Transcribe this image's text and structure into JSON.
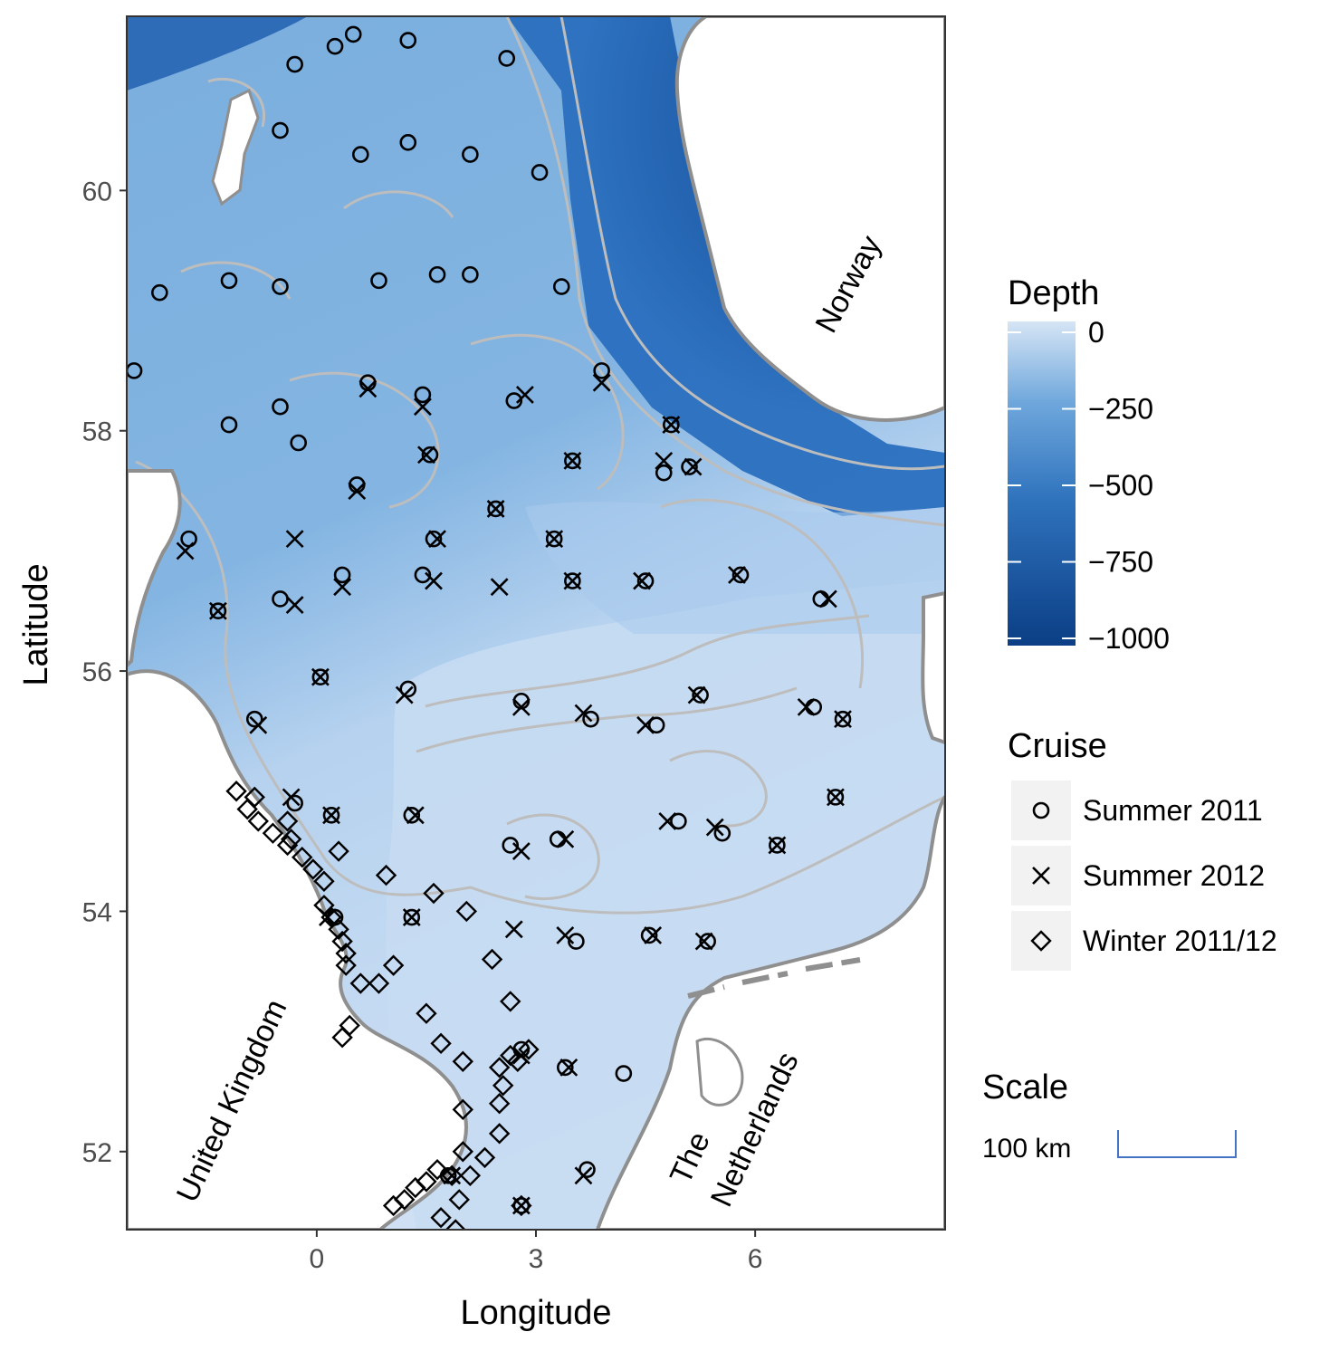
{
  "axes": {
    "x_title": "Longitude",
    "y_title": "Latitude",
    "x_ticks": [
      0,
      3,
      6
    ],
    "y_ticks": [
      52,
      54,
      56,
      58,
      60
    ],
    "x_range": [
      -2.6,
      8.6
    ],
    "y_range": [
      51.35,
      61.45
    ]
  },
  "countries": {
    "norway": "Norway",
    "uk": "United Kingdom",
    "nl_line1": "The",
    "nl_line2": "Netherlands"
  },
  "legend": {
    "depth_title": "Depth",
    "depth_ticks": [
      "0",
      "−250",
      "−500",
      "−750",
      "−1000"
    ],
    "depth_colors": {
      "shallow": "#d6e5f5",
      "deep": "#0b3e85"
    },
    "cruise_title": "Cruise",
    "cruise_items": [
      {
        "label": "Summer 2011",
        "symbol": "circle"
      },
      {
        "label": "Summer 2012",
        "symbol": "cross"
      },
      {
        "label": "Winter 2011/12",
        "symbol": "diamond"
      }
    ]
  },
  "scale": {
    "title": "Scale",
    "label": "100 km"
  },
  "colors": {
    "land": "#ffffff",
    "coast": "#888888",
    "contour": "#bdbdbd",
    "scale_bar": "#4472c4"
  },
  "stations": {
    "summer_2011": [
      [
        -0.3,
        61.05
      ],
      [
        0.25,
        61.2
      ],
      [
        0.5,
        61.3
      ],
      [
        1.25,
        61.25
      ],
      [
        2.6,
        61.1
      ],
      [
        -0.5,
        60.5
      ],
      [
        0.6,
        60.3
      ],
      [
        1.25,
        60.4
      ],
      [
        2.1,
        60.3
      ],
      [
        3.05,
        60.15
      ],
      [
        -2.15,
        59.15
      ],
      [
        -1.2,
        59.25
      ],
      [
        -0.5,
        59.2
      ],
      [
        0.85,
        59.25
      ],
      [
        1.65,
        59.3
      ],
      [
        2.1,
        59.3
      ],
      [
        3.35,
        59.2
      ],
      [
        -2.5,
        58.5
      ],
      [
        -0.5,
        58.2
      ],
      [
        -1.2,
        58.05
      ],
      [
        -0.25,
        57.9
      ],
      [
        1.45,
        58.3
      ],
      [
        2.7,
        58.25
      ],
      [
        3.9,
        58.5
      ],
      [
        0.7,
        58.4
      ],
      [
        4.85,
        58.05
      ],
      [
        1.55,
        57.8
      ],
      [
        3.5,
        57.75
      ],
      [
        4.75,
        57.65
      ],
      [
        5.1,
        57.7
      ],
      [
        0.55,
        57.55
      ],
      [
        2.45,
        57.35
      ],
      [
        -1.75,
        57.1
      ],
      [
        3.25,
        57.1
      ],
      [
        1.6,
        57.1
      ],
      [
        0.35,
        56.8
      ],
      [
        1.45,
        56.8
      ],
      [
        3.5,
        56.75
      ],
      [
        4.5,
        56.75
      ],
      [
        5.8,
        56.8
      ],
      [
        -1.35,
        56.5
      ],
      [
        -0.5,
        56.6
      ],
      [
        6.9,
        56.6
      ],
      [
        0.05,
        55.95
      ],
      [
        1.25,
        55.85
      ],
      [
        -0.85,
        55.6
      ],
      [
        2.8,
        55.75
      ],
      [
        3.75,
        55.6
      ],
      [
        4.65,
        55.55
      ],
      [
        5.25,
        55.8
      ],
      [
        6.8,
        55.7
      ],
      [
        7.2,
        55.6
      ],
      [
        -0.3,
        54.9
      ],
      [
        0.2,
        54.8
      ],
      [
        1.3,
        54.8
      ],
      [
        2.65,
        54.55
      ],
      [
        3.3,
        54.6
      ],
      [
        4.95,
        54.75
      ],
      [
        5.55,
        54.65
      ],
      [
        6.3,
        54.55
      ],
      [
        7.1,
        54.95
      ],
      [
        1.3,
        53.95
      ],
      [
        0.25,
        53.95
      ],
      [
        3.55,
        53.75
      ],
      [
        4.55,
        53.8
      ],
      [
        5.35,
        53.75
      ],
      [
        3.4,
        52.7
      ],
      [
        4.2,
        52.65
      ],
      [
        2.8,
        52.85
      ],
      [
        1.8,
        51.8
      ],
      [
        3.7,
        51.85
      ],
      [
        2.8,
        51.55
      ]
    ],
    "summer_2012": [
      [
        -1.8,
        57.0
      ],
      [
        -0.3,
        57.1
      ],
      [
        0.35,
        56.7
      ],
      [
        1.6,
        56.75
      ],
      [
        2.5,
        56.7
      ],
      [
        3.5,
        56.75
      ],
      [
        4.45,
        56.75
      ],
      [
        5.75,
        56.8
      ],
      [
        -1.35,
        56.5
      ],
      [
        -0.3,
        56.55
      ],
      [
        7.0,
        56.6
      ],
      [
        0.05,
        55.95
      ],
      [
        1.2,
        55.8
      ],
      [
        -0.8,
        55.55
      ],
      [
        2.8,
        55.7
      ],
      [
        3.65,
        55.65
      ],
      [
        4.5,
        55.55
      ],
      [
        5.2,
        55.8
      ],
      [
        6.7,
        55.7
      ],
      [
        7.2,
        55.6
      ],
      [
        0.7,
        58.35
      ],
      [
        1.45,
        58.2
      ],
      [
        2.85,
        58.3
      ],
      [
        3.9,
        58.4
      ],
      [
        4.85,
        58.05
      ],
      [
        1.5,
        57.8
      ],
      [
        3.5,
        57.75
      ],
      [
        4.75,
        57.75
      ],
      [
        5.15,
        57.7
      ],
      [
        0.55,
        57.5
      ],
      [
        2.45,
        57.35
      ],
      [
        3.25,
        57.1
      ],
      [
        1.65,
        57.1
      ],
      [
        -0.35,
        54.95
      ],
      [
        0.2,
        54.8
      ],
      [
        1.35,
        54.8
      ],
      [
        2.8,
        54.5
      ],
      [
        3.4,
        54.6
      ],
      [
        4.8,
        54.75
      ],
      [
        5.45,
        54.7
      ],
      [
        6.3,
        54.55
      ],
      [
        7.1,
        54.95
      ],
      [
        0.15,
        53.95
      ],
      [
        1.3,
        53.95
      ],
      [
        2.7,
        53.85
      ],
      [
        3.4,
        53.8
      ],
      [
        4.6,
        53.8
      ],
      [
        5.3,
        53.75
      ],
      [
        2.8,
        52.8
      ],
      [
        3.45,
        52.7
      ],
      [
        1.85,
        51.8
      ],
      [
        3.65,
        51.8
      ],
      [
        2.8,
        51.55
      ]
    ],
    "winter_2011_12": [
      [
        -1.1,
        55.0
      ],
      [
        -0.85,
        54.95
      ],
      [
        -0.95,
        54.85
      ],
      [
        -0.8,
        54.75
      ],
      [
        -0.6,
        54.65
      ],
      [
        -0.4,
        54.55
      ],
      [
        -0.2,
        54.45
      ],
      [
        -0.05,
        54.35
      ],
      [
        0.1,
        54.25
      ],
      [
        0.1,
        54.05
      ],
      [
        0.2,
        53.95
      ],
      [
        0.3,
        53.85
      ],
      [
        0.35,
        53.75
      ],
      [
        0.4,
        53.65
      ],
      [
        0.4,
        53.55
      ],
      [
        0.6,
        53.4
      ],
      [
        0.85,
        53.4
      ],
      [
        1.05,
        53.55
      ],
      [
        -0.4,
        54.75
      ],
      [
        -0.35,
        54.6
      ],
      [
        0.3,
        54.5
      ],
      [
        0.95,
        54.3
      ],
      [
        1.6,
        54.15
      ],
      [
        2.05,
        54.0
      ],
      [
        2.4,
        53.6
      ],
      [
        1.5,
        53.15
      ],
      [
        2.65,
        53.25
      ],
      [
        0.45,
        53.05
      ],
      [
        0.35,
        52.95
      ],
      [
        1.7,
        52.9
      ],
      [
        2.0,
        52.75
      ],
      [
        2.5,
        52.7
      ],
      [
        2.65,
        52.8
      ],
      [
        2.75,
        52.75
      ],
      [
        2.9,
        52.85
      ],
      [
        2.55,
        52.55
      ],
      [
        2.5,
        52.4
      ],
      [
        2.0,
        52.35
      ],
      [
        2.5,
        52.15
      ],
      [
        2.0,
        52.0
      ],
      [
        2.3,
        51.95
      ],
      [
        1.65,
        51.85
      ],
      [
        1.85,
        51.8
      ],
      [
        2.1,
        51.8
      ],
      [
        1.5,
        51.75
      ],
      [
        1.35,
        51.7
      ],
      [
        1.2,
        51.6
      ],
      [
        1.05,
        51.55
      ],
      [
        1.95,
        51.6
      ],
      [
        1.7,
        51.45
      ],
      [
        1.9,
        51.35
      ],
      [
        2.8,
        51.55
      ]
    ]
  }
}
